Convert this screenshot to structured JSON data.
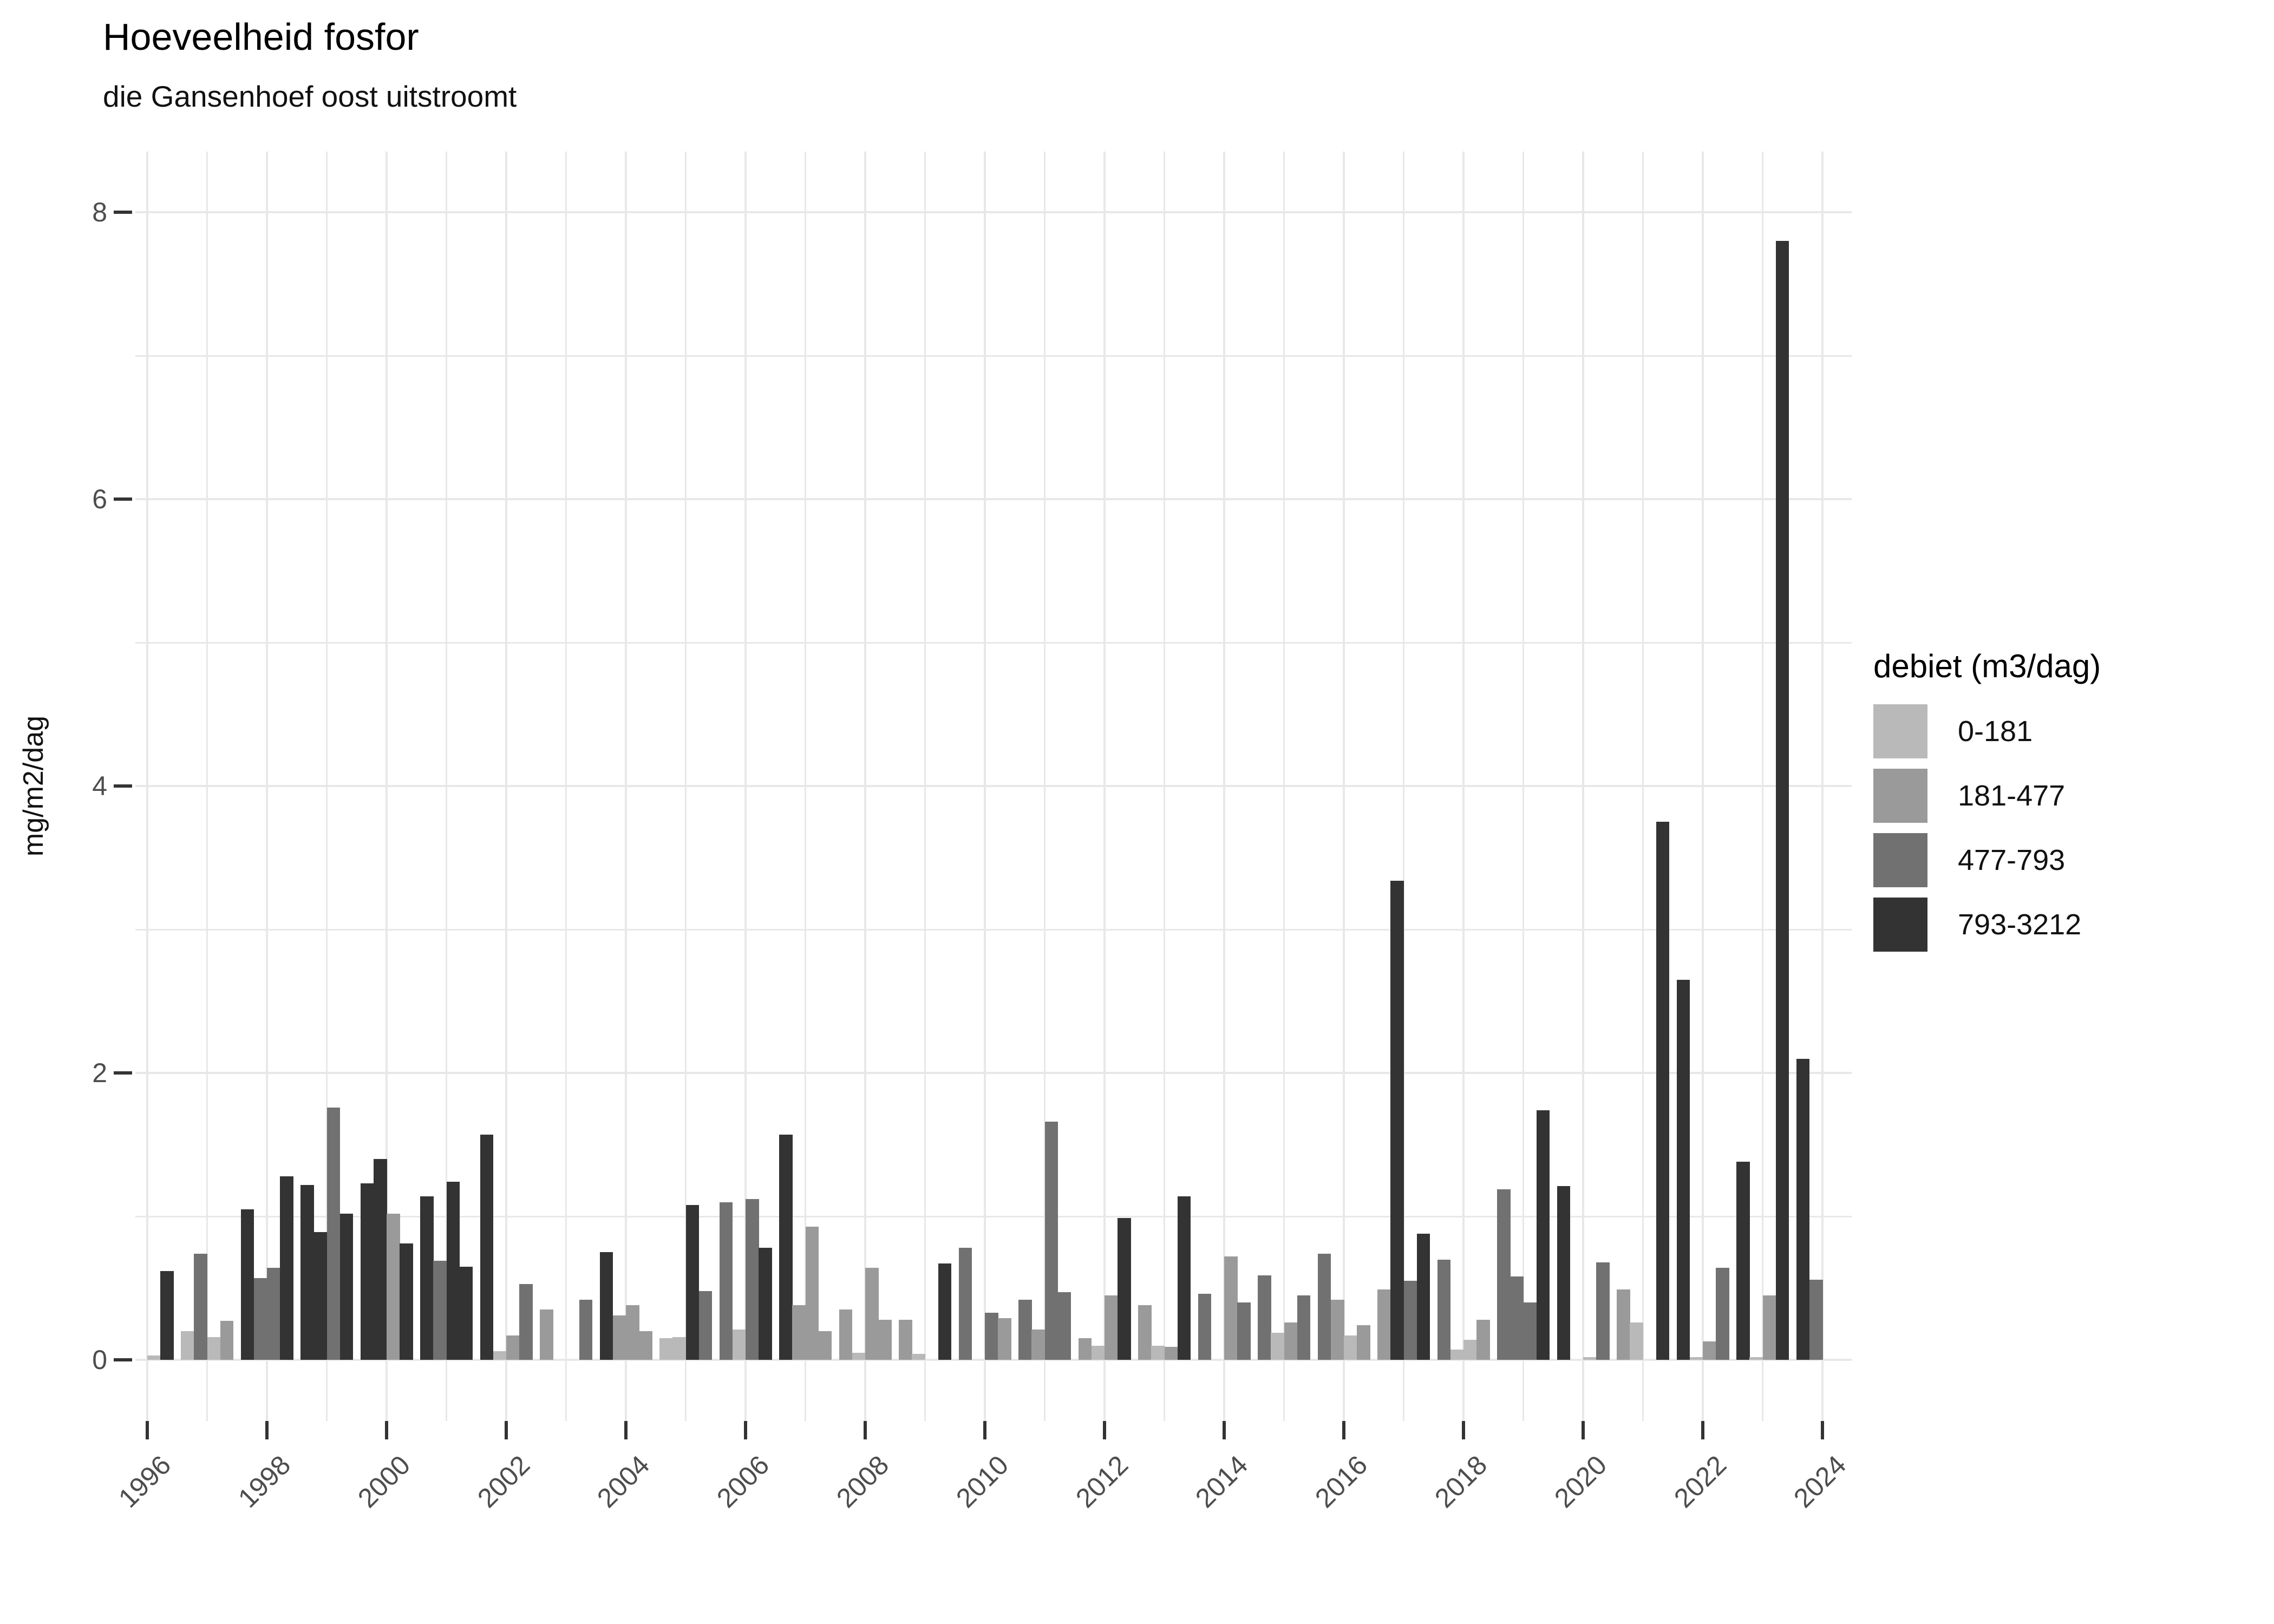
{
  "chart_data": {
    "type": "bar",
    "title": "Hoeveelheid fosfor",
    "subtitle": "die Gansenhoef oost uitstroomt",
    "ylabel": "mg/m2/dag",
    "ylim": [
      0,
      8
    ],
    "yticks": [
      0,
      2,
      4,
      6,
      8
    ],
    "xticks": [
      1996,
      1998,
      2000,
      2002,
      2004,
      2006,
      2008,
      2010,
      2012,
      2014,
      2016,
      2018,
      2020,
      2022,
      2024
    ],
    "x_year_range": [
      1996,
      2024
    ],
    "grid": {
      "color": "#e8e8e8",
      "horizontal_step": 1,
      "vertical_step_years": 1
    },
    "legend": {
      "title": "debiet (m3/dag)",
      "position": "right",
      "entries": [
        {
          "label": "0-181",
          "color": "#b9b9b9"
        },
        {
          "label": "181-477",
          "color": "#9a9a9a"
        },
        {
          "label": "477-793",
          "color": "#717171"
        },
        {
          "label": "793-3212",
          "color": "#333333"
        }
      ]
    },
    "bars_note": "up to 4 quarterly bars per year group; bin is an index into legend.entries; v in mg/m2/dag",
    "groups": [
      {
        "year": 1996,
        "bars": [
          null,
          null,
          {
            "bin": 0,
            "v": 0.03
          },
          {
            "bin": 3,
            "v": 0.62
          }
        ]
      },
      {
        "year": 1997,
        "bars": [
          {
            "bin": 0,
            "v": 0.2
          },
          {
            "bin": 2,
            "v": 0.74
          },
          {
            "bin": 0,
            "v": 0.16
          },
          {
            "bin": 1,
            "v": 0.27
          }
        ]
      },
      {
        "year": 1998,
        "bars": [
          {
            "bin": 3,
            "v": 1.05
          },
          {
            "bin": 2,
            "v": 0.57
          },
          {
            "bin": 2,
            "v": 0.64
          },
          {
            "bin": 3,
            "v": 1.28
          }
        ]
      },
      {
        "year": 1999,
        "bars": [
          {
            "bin": 3,
            "v": 1.22
          },
          {
            "bin": 3,
            "v": 0.89
          },
          {
            "bin": 2,
            "v": 1.76
          },
          {
            "bin": 3,
            "v": 1.02
          }
        ]
      },
      {
        "year": 2000,
        "bars": [
          {
            "bin": 3,
            "v": 1.23
          },
          {
            "bin": 3,
            "v": 1.4
          },
          {
            "bin": 1,
            "v": 1.02
          },
          {
            "bin": 3,
            "v": 0.81
          }
        ]
      },
      {
        "year": 2001,
        "bars": [
          {
            "bin": 3,
            "v": 1.14
          },
          {
            "bin": 2,
            "v": 0.69
          },
          {
            "bin": 3,
            "v": 1.24
          },
          {
            "bin": 3,
            "v": 0.65
          }
        ]
      },
      {
        "year": 2002,
        "bars": [
          {
            "bin": 3,
            "v": 1.57
          },
          {
            "bin": 0,
            "v": 0.06
          },
          {
            "bin": 1,
            "v": 0.17
          },
          {
            "bin": 2,
            "v": 0.53
          }
        ]
      },
      {
        "year": 2003,
        "bars": [
          {
            "bin": 1,
            "v": 0.35
          },
          null,
          null,
          {
            "bin": 2,
            "v": 0.42
          }
        ]
      },
      {
        "year": 2004,
        "bars": [
          {
            "bin": 3,
            "v": 0.75
          },
          {
            "bin": 1,
            "v": 0.31
          },
          {
            "bin": 1,
            "v": 0.38
          },
          {
            "bin": 1,
            "v": 0.2
          }
        ]
      },
      {
        "year": 2005,
        "bars": [
          {
            "bin": 0,
            "v": 0.15
          },
          {
            "bin": 0,
            "v": 0.16
          },
          {
            "bin": 3,
            "v": 1.08
          },
          {
            "bin": 2,
            "v": 0.48
          }
        ]
      },
      {
        "year": 2006,
        "bars": [
          {
            "bin": 2,
            "v": 1.1
          },
          {
            "bin": 0,
            "v": 0.21
          },
          {
            "bin": 2,
            "v": 1.12
          },
          {
            "bin": 3,
            "v": 0.78
          }
        ]
      },
      {
        "year": 2007,
        "bars": [
          {
            "bin": 3,
            "v": 1.57
          },
          {
            "bin": 1,
            "v": 0.38
          },
          {
            "bin": 1,
            "v": 0.93
          },
          {
            "bin": 1,
            "v": 0.2
          }
        ]
      },
      {
        "year": 2008,
        "bars": [
          {
            "bin": 1,
            "v": 0.35
          },
          {
            "bin": 0,
            "v": 0.05
          },
          {
            "bin": 1,
            "v": 0.64
          },
          {
            "bin": 1,
            "v": 0.28
          }
        ]
      },
      {
        "year": 2009,
        "bars": [
          {
            "bin": 1,
            "v": 0.28
          },
          {
            "bin": 0,
            "v": 0.04
          },
          null,
          {
            "bin": 3,
            "v": 0.67
          }
        ]
      },
      {
        "year": 2010,
        "bars": [
          {
            "bin": 2,
            "v": 0.78
          },
          null,
          {
            "bin": 2,
            "v": 0.33
          },
          {
            "bin": 1,
            "v": 0.29
          }
        ]
      },
      {
        "year": 2011,
        "bars": [
          {
            "bin": 2,
            "v": 0.42
          },
          {
            "bin": 1,
            "v": 0.21
          },
          {
            "bin": 2,
            "v": 1.66
          },
          {
            "bin": 2,
            "v": 0.47
          }
        ]
      },
      {
        "year": 2012,
        "bars": [
          {
            "bin": 1,
            "v": 0.15
          },
          {
            "bin": 0,
            "v": 0.1
          },
          {
            "bin": 1,
            "v": 0.45
          },
          {
            "bin": 3,
            "v": 0.99
          }
        ]
      },
      {
        "year": 2013,
        "bars": [
          {
            "bin": 1,
            "v": 0.38
          },
          {
            "bin": 0,
            "v": 0.1
          },
          {
            "bin": 1,
            "v": 0.09
          },
          {
            "bin": 3,
            "v": 1.14
          }
        ]
      },
      {
        "year": 2014,
        "bars": [
          {
            "bin": 2,
            "v": 0.46
          },
          null,
          {
            "bin": 1,
            "v": 0.72
          },
          {
            "bin": 2,
            "v": 0.4
          }
        ]
      },
      {
        "year": 2015,
        "bars": [
          {
            "bin": 2,
            "v": 0.59
          },
          {
            "bin": 0,
            "v": 0.19
          },
          {
            "bin": 1,
            "v": 0.26
          },
          {
            "bin": 2,
            "v": 0.45
          }
        ]
      },
      {
        "year": 2016,
        "bars": [
          {
            "bin": 2,
            "v": 0.74
          },
          {
            "bin": 1,
            "v": 0.42
          },
          {
            "bin": 0,
            "v": 0.17
          },
          {
            "bin": 1,
            "v": 0.24
          }
        ]
      },
      {
        "year": 2017,
        "bars": [
          {
            "bin": 1,
            "v": 0.49
          },
          {
            "bin": 3,
            "v": 3.34
          },
          {
            "bin": 2,
            "v": 0.55
          },
          {
            "bin": 3,
            "v": 0.88
          }
        ]
      },
      {
        "year": 2018,
        "bars": [
          {
            "bin": 2,
            "v": 0.7
          },
          {
            "bin": 0,
            "v": 0.07
          },
          {
            "bin": 0,
            "v": 0.14
          },
          {
            "bin": 1,
            "v": 0.28
          }
        ]
      },
      {
        "year": 2019,
        "bars": [
          {
            "bin": 2,
            "v": 1.19
          },
          {
            "bin": 2,
            "v": 0.58
          },
          {
            "bin": 2,
            "v": 0.4
          },
          {
            "bin": 3,
            "v": 1.74
          }
        ]
      },
      {
        "year": 2020,
        "bars": [
          {
            "bin": 3,
            "v": 1.21
          },
          null,
          {
            "bin": 0,
            "v": 0.02
          },
          {
            "bin": 2,
            "v": 0.68
          }
        ]
      },
      {
        "year": 2021,
        "bars": [
          {
            "bin": 1,
            "v": 0.49
          },
          {
            "bin": 0,
            "v": 0.26
          },
          null,
          {
            "bin": 3,
            "v": 3.75
          }
        ]
      },
      {
        "year": 2022,
        "bars": [
          {
            "bin": 3,
            "v": 2.65
          },
          {
            "bin": 0,
            "v": 0.02
          },
          {
            "bin": 1,
            "v": 0.13
          },
          {
            "bin": 2,
            "v": 0.64
          }
        ]
      },
      {
        "year": 2023,
        "bars": [
          {
            "bin": 3,
            "v": 1.38
          },
          {
            "bin": 0,
            "v": 0.02
          },
          {
            "bin": 1,
            "v": 0.45
          },
          {
            "bin": 3,
            "v": 7.8
          }
        ]
      },
      {
        "year": 2024,
        "bars": [
          {
            "bin": 3,
            "v": 2.1
          },
          {
            "bin": 2,
            "v": 0.56
          },
          null,
          null
        ]
      }
    ]
  }
}
